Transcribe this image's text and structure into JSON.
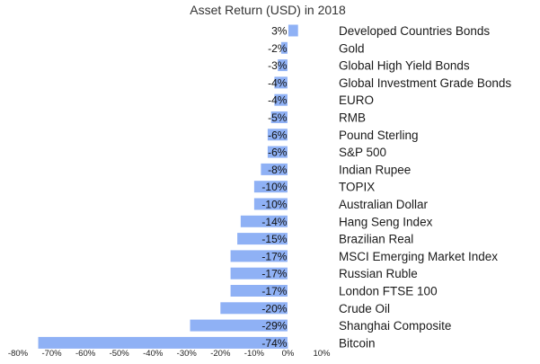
{
  "chart_data": {
    "type": "bar",
    "orientation": "horizontal",
    "title": "Asset Return (USD) in 2018",
    "xlabel": "",
    "ylabel": "",
    "xlim": [
      -80,
      10
    ],
    "grid": false,
    "legend": "none",
    "bar_color": "#8FB1F5",
    "categories": [
      "Developed Countries Bonds",
      "Gold",
      "Global High Yield Bonds",
      "Global Investment Grade Bonds",
      "EURO",
      "RMB",
      "Pound Sterling",
      "S&P 500",
      "Indian Rupee",
      "TOPIX",
      "Australian Dollar",
      "Hang Seng Index",
      "Brazilian Real",
      "MSCI Emerging Market Index",
      "Russian Ruble",
      "London FTSE 100",
      "Crude Oil",
      "Shanghai Composite",
      "Bitcoin"
    ],
    "values": [
      3,
      -2,
      -3,
      -4,
      -4,
      -5,
      -6,
      -6,
      -8,
      -10,
      -10,
      -14,
      -15,
      -17,
      -17,
      -17,
      -20,
      -29,
      -74
    ],
    "data_labels": [
      "3%",
      "-2%",
      "-3%",
      "-4%",
      "-4%",
      "-5%",
      "-6%",
      "-6%",
      "-8%",
      "-10%",
      "-10%",
      "-14%",
      "-15%",
      "-17%",
      "-17%",
      "-17%",
      "-20%",
      "-29%",
      "-74%"
    ],
    "x_tick_labels": [
      "-80%",
      "-70%",
      "-60%",
      "-50%",
      "-40%",
      "-30%",
      "-20%",
      "-10%",
      "0%",
      "10%"
    ]
  }
}
